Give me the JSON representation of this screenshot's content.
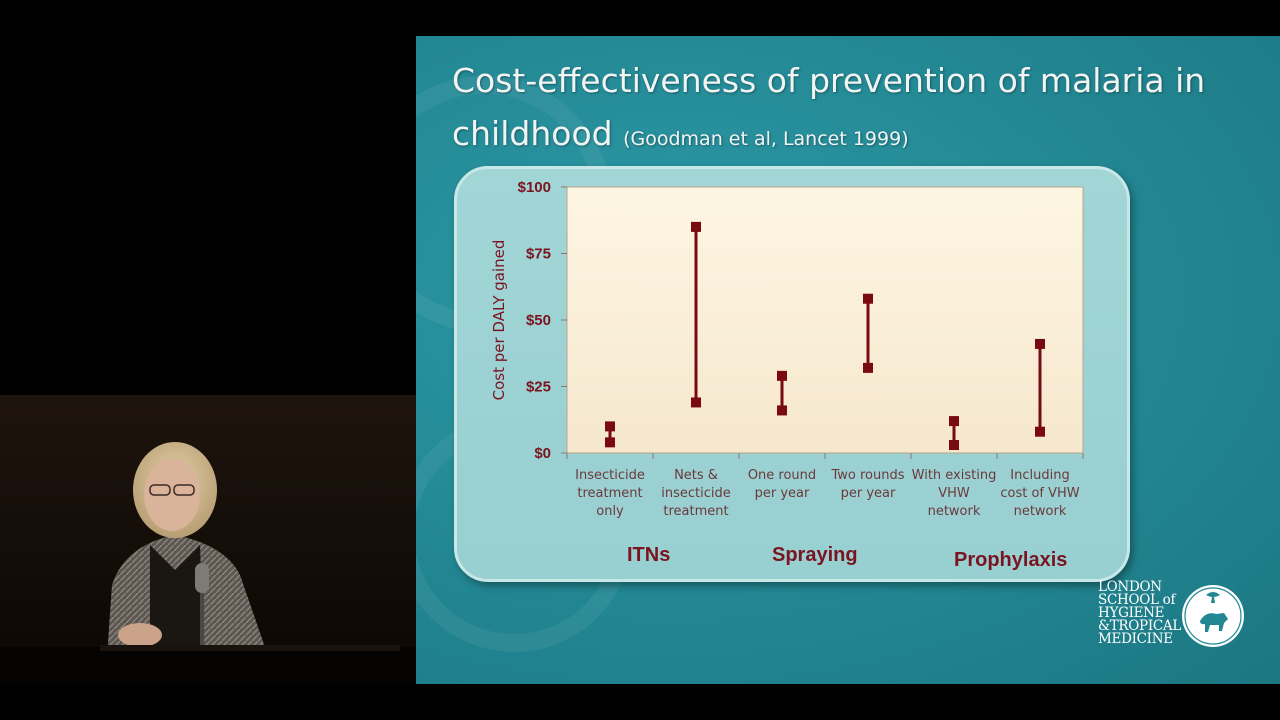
{
  "slide": {
    "title_main": "Cost-effectiveness of prevention of malaria in childhood",
    "title_citation": "(Goodman et al, Lancet 1999)"
  },
  "group_labels": [
    "ITNs",
    "Spraying",
    "Prophylaxis"
  ],
  "logo": {
    "lines": [
      "LONDON",
      "SCHOOL of",
      "HYGIENE",
      "&TROPICAL",
      "MEDICINE"
    ]
  },
  "colors": {
    "slide_bg": "#228793",
    "marker": "#7a0a12",
    "axis_label": "#7a1420",
    "plot_bg_top": "#fdf6e2",
    "plot_bg_bottom": "#f6e7cf"
  },
  "chart_data": {
    "type": "range",
    "ylabel": "Cost per DALY gained",
    "ylim": [
      0,
      100
    ],
    "yticks": [
      0,
      25,
      50,
      75,
      100
    ],
    "ytick_labels": [
      "$0",
      "$25",
      "$50",
      "$75",
      "$100"
    ],
    "categories": [
      [
        "Insecticide",
        "treatment",
        "only"
      ],
      [
        "Nets &",
        "insecticide",
        "treatment"
      ],
      [
        "One round",
        "per year"
      ],
      [
        "Two rounds",
        "per year"
      ],
      [
        "With existing",
        "VHW",
        "network"
      ],
      [
        "Including",
        "cost of VHW",
        "network"
      ]
    ],
    "ranges": [
      {
        "low": 4,
        "high": 10
      },
      {
        "low": 19,
        "high": 85
      },
      {
        "low": 16,
        "high": 29
      },
      {
        "low": 32,
        "high": 58
      },
      {
        "low": 3,
        "high": 12
      },
      {
        "low": 8,
        "high": 41
      }
    ]
  }
}
